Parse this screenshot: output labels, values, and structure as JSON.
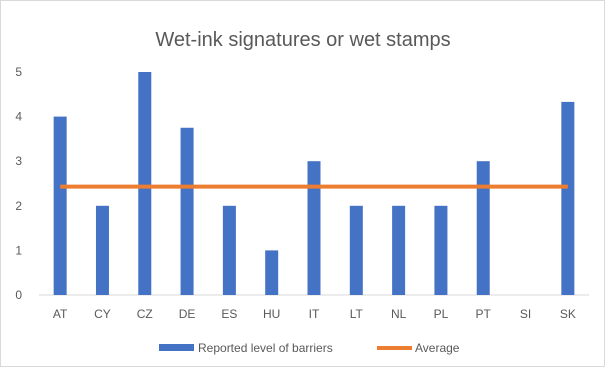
{
  "chart_data": {
    "type": "bar",
    "title": "Wet-ink signatures or wet stamps",
    "xlabel": "",
    "ylabel": "",
    "categories": [
      "AT",
      "CY",
      "CZ",
      "DE",
      "ES",
      "HU",
      "IT",
      "LT",
      "NL",
      "PL",
      "PT",
      "SI",
      "SK"
    ],
    "series": [
      {
        "name": "Reported level of barriers",
        "kind": "bar",
        "color": "#4472c4",
        "values": [
          4,
          2,
          5,
          3.75,
          2,
          1,
          3,
          2,
          2,
          2,
          3,
          0,
          4.33
        ]
      },
      {
        "name": "Average",
        "kind": "line",
        "color": "#ed7d31",
        "values": [
          2.43,
          2.43,
          2.43,
          2.43,
          2.43,
          2.43,
          2.43,
          2.43,
          2.43,
          2.43,
          2.43,
          2.43,
          2.43
        ]
      }
    ],
    "ylim": [
      0,
      5
    ],
    "yticks": [
      "0",
      "1",
      "2",
      "3",
      "4",
      "5"
    ],
    "grid": false,
    "legend_position": "bottom"
  }
}
